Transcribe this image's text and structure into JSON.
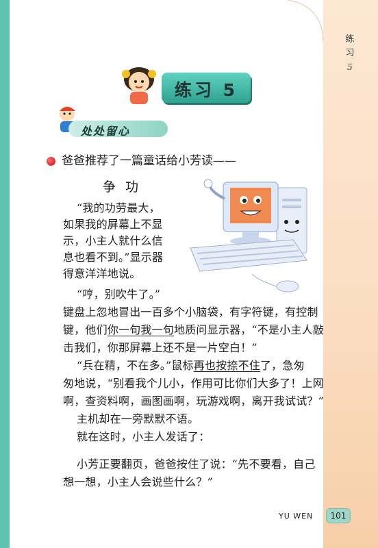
{
  "side_label": {
    "line1": "练",
    "line2": "习",
    "num": "5"
  },
  "title": "练习 5",
  "section_header": "处处留心",
  "intro": "爸爸推荐了一篇童话给小芳读——",
  "story_title": "争功",
  "story": {
    "p1": [
      "“我的功劳最大，",
      "如果我的屏幕上不显",
      "示，小主人就什么信",
      "息也看不到。”显示器",
      "得意洋洋地说。"
    ],
    "p2_l1": "“哼，别吹牛了。”",
    "p2_l2": "键盘上忽地冒出一百多个小脑袋，有字符键，有控制",
    "p2_l3_a": "键，他们",
    "p2_l3_u1": "你一句我一句",
    "p2_l3_b": "地质问显示器，“不是小主人敲",
    "p2_l4": "击我们，你那屏幕上还不是一片空白！”",
    "p3_l1_a": "“兵在精，不在多。”鼠标",
    "p3_l1_u": "再也按捺不住",
    "p3_l1_b": "了，急匆",
    "p3_l2": "匆地说，“别看我个儿小，作用可比你们大多了！上网",
    "p3_l3": "啊，查资料啊，画图画啊，玩游戏啊，离开我试试？”",
    "p4": "主机却在一旁默默不语。",
    "p5": "就在这时，小主人发话了：",
    "p6_l1": "小芳正要翻页，爸爸按住了说：“先不要看，自己",
    "p6_l2": "想一想，小主人会说些什么？”"
  },
  "footer": {
    "label": "YU WEN",
    "page": "101"
  },
  "colors": {
    "teal": "#5ec3b1",
    "peach": "#fbdcc0",
    "banner": "#2fa38f"
  },
  "icons": [
    "girl-mascot-icon",
    "boy-mascot-icon",
    "computer-illustration",
    "red-bullet-icon"
  ]
}
